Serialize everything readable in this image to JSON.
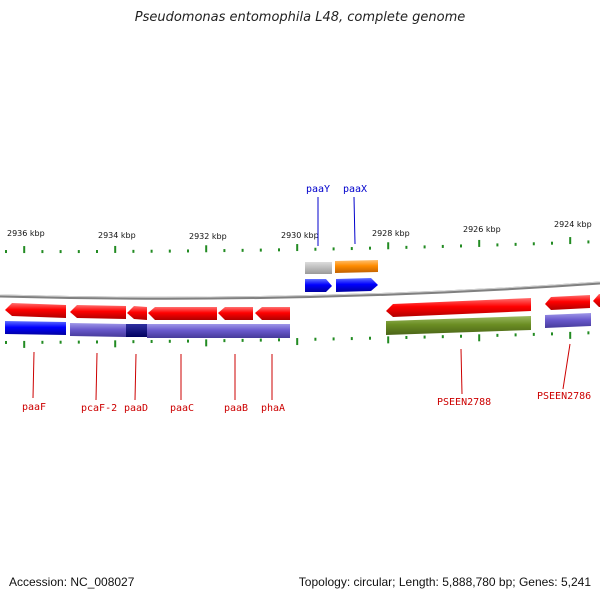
{
  "header": {
    "title": "Pseudomonas entomophila L48, complete genome"
  },
  "footer": {
    "accession": "Accession: NC_008027",
    "topology": "Topology: circular; Length: 5,888,780 bp; Genes: 5,241"
  },
  "axis": {
    "ticks": [
      "2936 kbp",
      "2934 kbp",
      "2932 kbp",
      "2930 kbp",
      "2928 kbp",
      "2926 kbp",
      "2924 kbp"
    ]
  },
  "genes": [
    {
      "id": "paaY",
      "label": "paaY",
      "color": "#0000cc"
    },
    {
      "id": "paaX",
      "label": "paaX",
      "color": "#0000cc"
    },
    {
      "id": "paaF",
      "label": "paaF",
      "color": "#cc0000"
    },
    {
      "id": "pcaF-2",
      "label": "pcaF-2",
      "color": "#cc0000"
    },
    {
      "id": "paaD",
      "label": "paaD",
      "color": "#cc0000"
    },
    {
      "id": "paaC",
      "label": "paaC",
      "color": "#cc0000"
    },
    {
      "id": "paaB",
      "label": "paaB",
      "color": "#cc0000"
    },
    {
      "id": "phaA",
      "label": "phaA",
      "color": "#cc0000"
    },
    {
      "id": "PSEEN2788",
      "label": "PSEEN2788",
      "color": "#cc0000"
    },
    {
      "id": "PSEEN2786",
      "label": "PSEEN2786",
      "color": "#cc0000"
    }
  ],
  "colors": {
    "gene_red": "#ff0000",
    "cds_blue": "#0000ff",
    "cds_purple": "#6a5acd",
    "cds_navy": "#000080",
    "cds_green": "#6b8e23",
    "cds_orange": "#ff8c00",
    "cds_gray": "#b0b0b0",
    "tick_green": "#228b22",
    "backbone": "#808080"
  }
}
